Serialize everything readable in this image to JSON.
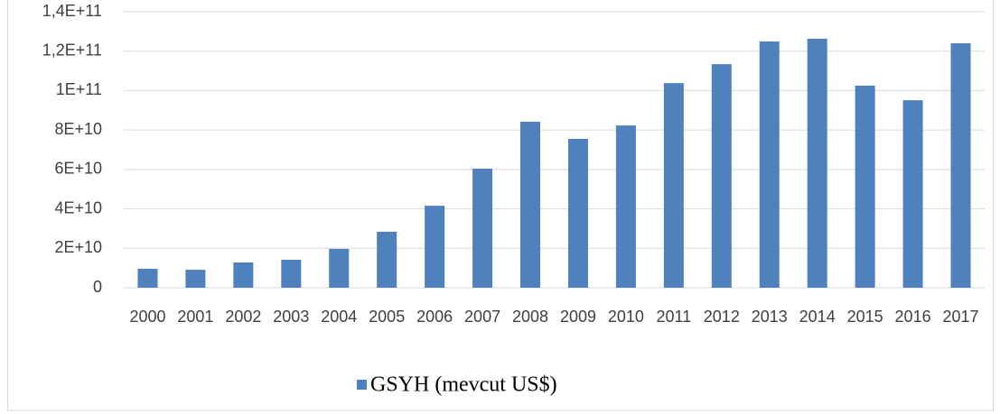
{
  "chart_data": {
    "type": "bar",
    "categories": [
      "2000",
      "2001",
      "2002",
      "2003",
      "2004",
      "2005",
      "2006",
      "2007",
      "2008",
      "2009",
      "2010",
      "2011",
      "2012",
      "2013",
      "2014",
      "2015",
      "2016",
      "2017"
    ],
    "series": [
      {
        "name": "GSYH (mevcut US$)",
        "color": "#4f81bd",
        "values": [
          9600000000,
          9100000000,
          12800000000,
          14200000000,
          19700000000,
          28400000000,
          41600000000,
          60400000000,
          84200000000,
          75500000000,
          82300000000,
          103800000000,
          113400000000,
          124900000000,
          126300000000,
          102500000000,
          95100000000,
          124000000000
        ]
      }
    ],
    "ylim": [
      0,
      140000000000
    ],
    "yticks": [
      0,
      {
        "value": 20000000000,
        "label": "2E+10"
      },
      {
        "value": 40000000000,
        "label": "4E+10"
      },
      {
        "value": 60000000000,
        "label": "6E+10"
      },
      {
        "value": 80000000000,
        "label": "8E+10"
      },
      {
        "value": 100000000000,
        "label": "1E+11"
      },
      {
        "value": 120000000000,
        "label": "1,2E+11"
      },
      {
        "value": 140000000000,
        "label": "1,4E+11"
      }
    ],
    "grid": true,
    "legend": "bottom"
  }
}
